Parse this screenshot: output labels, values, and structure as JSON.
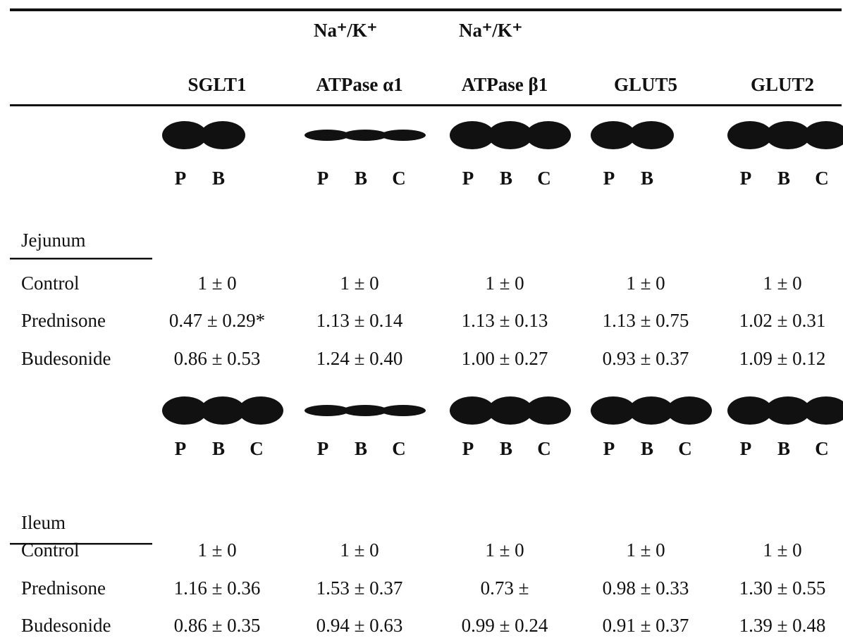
{
  "header": {
    "columns": [
      {
        "name": "SGLT1"
      },
      {
        "line1": "Na⁺/K⁺",
        "name": "ATPase α1"
      },
      {
        "line1": "Na⁺/K⁺",
        "name": "ATPase β1"
      },
      {
        "name": "GLUT5"
      },
      {
        "name": "GLUT2"
      }
    ]
  },
  "sections": [
    {
      "title": "Jejunum",
      "lanes": [
        [
          "P",
          "B"
        ],
        [
          "P",
          "B",
          "C"
        ],
        [
          "P",
          "B",
          "C"
        ],
        [
          "P",
          "B"
        ],
        [
          "P",
          "B",
          "C"
        ]
      ],
      "rows": [
        {
          "label": "Control",
          "values": [
            "1 ± 0",
            "1 ± 0",
            "1 ± 0",
            "1 ± 0",
            "1 ± 0"
          ]
        },
        {
          "label": "Prednisone",
          "values": [
            "0.47 ± 0.29*",
            "1.13 ± 0.14",
            "1.13 ± 0.13",
            "1.13 ± 0.75",
            "1.02 ± 0.31"
          ]
        },
        {
          "label": "Budesonide",
          "values": [
            "0.86 ± 0.53",
            "1.24 ± 0.40",
            "1.00 ± 0.27",
            "0.93 ± 0.37",
            "1.09 ± 0.12"
          ]
        }
      ]
    },
    {
      "title": "Ileum",
      "lanes": [
        [
          "P",
          "B",
          "C"
        ],
        [
          "P",
          "B",
          "C"
        ],
        [
          "P",
          "B",
          "C"
        ],
        [
          "P",
          "B",
          "C"
        ],
        [
          "P",
          "B",
          "C"
        ]
      ],
      "rows": [
        {
          "label": "Control",
          "values": [
            "1 ± 0",
            "1 ± 0",
            "1 ± 0",
            "1 ± 0",
            "1 ± 0"
          ]
        },
        {
          "label": "Prednisone",
          "values": [
            "1.16 ± 0.36",
            "1.53 ± 0.37",
            "0.73 ±",
            "0.98 ± 0.33",
            "1.30 ± 0.55"
          ]
        },
        {
          "label": "Budesonide",
          "values": [
            "0.86 ± 0.35",
            "0.94 ± 0.63",
            "0.99 ± 0.24",
            "0.91 ± 0.37",
            "1.39 ± 0.48"
          ]
        }
      ]
    }
  ]
}
